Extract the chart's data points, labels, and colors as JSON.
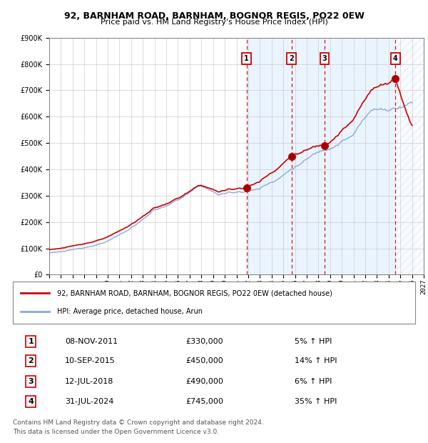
{
  "title1": "92, BARNHAM ROAD, BARNHAM, BOGNOR REGIS, PO22 0EW",
  "title2": "Price paid vs. HM Land Registry's House Price Index (HPI)",
  "legend_line1": "92, BARNHAM ROAD, BARNHAM, BOGNOR REGIS, PO22 0EW (detached house)",
  "legend_line2": "HPI: Average price, detached house, Arun",
  "footer1": "Contains HM Land Registry data © Crown copyright and database right 2024.",
  "footer2": "This data is licensed under the Open Government Licence v3.0.",
  "transactions": [
    {
      "num": 1,
      "date": "08-NOV-2011",
      "price": 330000,
      "pct": "5%",
      "direction": "↑"
    },
    {
      "num": 2,
      "date": "10-SEP-2015",
      "price": 450000,
      "pct": "14%",
      "direction": "↑"
    },
    {
      "num": 3,
      "date": "12-JUL-2018",
      "price": 490000,
      "pct": "6%",
      "direction": "↑"
    },
    {
      "num": 4,
      "date": "31-JUL-2024",
      "price": 745000,
      "pct": "35%",
      "direction": "↑"
    }
  ],
  "transaction_years": [
    2011.86,
    2015.71,
    2018.53,
    2024.58
  ],
  "hpi_color": "#88aadd",
  "property_color": "#cc0000",
  "bg_shade_color": "#ddeeff",
  "ylim": [
    0,
    900000
  ],
  "yticks": [
    0,
    100000,
    200000,
    300000,
    400000,
    500000,
    600000,
    700000,
    800000,
    900000
  ],
  "xlim_start": 1995.0,
  "xlim_end": 2027.0,
  "xticks": [
    1995,
    1996,
    1997,
    1998,
    1999,
    2000,
    2001,
    2002,
    2003,
    2004,
    2005,
    2006,
    2007,
    2008,
    2009,
    2010,
    2011,
    2012,
    2013,
    2014,
    2015,
    2016,
    2017,
    2018,
    2019,
    2020,
    2021,
    2022,
    2023,
    2024,
    2025,
    2026,
    2027
  ]
}
